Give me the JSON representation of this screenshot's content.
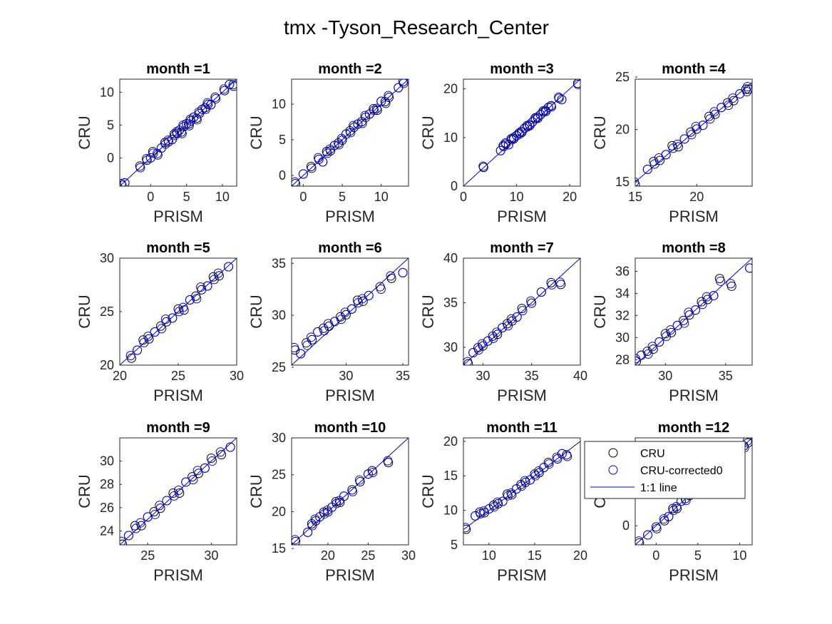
{
  "figure": {
    "title": "tmx -Tyson_Research_Center"
  },
  "legend": {
    "entries": [
      {
        "label": "CRU",
        "color": "#000000",
        "marker": "circle"
      },
      {
        "label": "CRU-corrected0",
        "color": "#0000ff",
        "marker": "circle"
      },
      {
        "label": "1:1 line",
        "color": "#0000cc",
        "marker": "line"
      }
    ],
    "placement": "over month 12 panel, top-left"
  },
  "chart_data": [
    {
      "type": "scatter",
      "title": "month =1",
      "xlabel": "PRISM",
      "ylabel": "CRU",
      "xlim": [
        -4.3,
        12
      ],
      "ylim": [
        -4.3,
        12
      ],
      "xticks": [
        0,
        5,
        10
      ],
      "yticks": [
        0,
        5,
        10
      ],
      "series": [
        {
          "name": "CRU",
          "color": "#000000"
        },
        {
          "name": "CRU-corrected0",
          "color": "#0000ff"
        }
      ],
      "points": [
        [
          -4,
          -4
        ],
        [
          -3.6,
          -3.8
        ],
        [
          -1.5,
          -1.4
        ],
        [
          -0.5,
          -0.2
        ],
        [
          0,
          0
        ],
        [
          0.3,
          0.8
        ],
        [
          1,
          0.6
        ],
        [
          1.5,
          1.5
        ],
        [
          2,
          2.2
        ],
        [
          2.5,
          2.6
        ],
        [
          3,
          2.8
        ],
        [
          3.3,
          3.5
        ],
        [
          3.7,
          3.9
        ],
        [
          4,
          4.2
        ],
        [
          4.3,
          3.8
        ],
        [
          4.6,
          4.9
        ],
        [
          5,
          5.2
        ],
        [
          5.3,
          5.0
        ],
        [
          5.6,
          5.8
        ],
        [
          6,
          6.2
        ],
        [
          6.4,
          5.9
        ],
        [
          6.8,
          6.9
        ],
        [
          7.2,
          7.4
        ],
        [
          7.6,
          7.5
        ],
        [
          8,
          8.3
        ],
        [
          8.4,
          8.1
        ],
        [
          9,
          9.1
        ],
        [
          10.3,
          10.4
        ],
        [
          11,
          11.2
        ],
        [
          11.5,
          11.0
        ]
      ],
      "line_1to1": true
    },
    {
      "type": "scatter",
      "title": "month =2",
      "xlabel": "PRISM",
      "ylabel": "CRU",
      "xlim": [
        -1.5,
        13.5
      ],
      "ylim": [
        -1.5,
        13.5
      ],
      "xticks": [
        0,
        5,
        10
      ],
      "yticks": [
        0,
        5,
        10
      ],
      "series": [
        {
          "name": "CRU",
          "color": "#000000"
        },
        {
          "name": "CRU-corrected0",
          "color": "#0000ff"
        }
      ],
      "points": [
        [
          -1,
          -1
        ],
        [
          0,
          0.2
        ],
        [
          1,
          1.1
        ],
        [
          2,
          2.4
        ],
        [
          2.5,
          1.9
        ],
        [
          3,
          3.2
        ],
        [
          3.5,
          3.6
        ],
        [
          4,
          4.2
        ],
        [
          4.5,
          4.4
        ],
        [
          5,
          5.1
        ],
        [
          5.5,
          5.8
        ],
        [
          6,
          6.1
        ],
        [
          6.5,
          6.9
        ],
        [
          7,
          7.2
        ],
        [
          7.5,
          7.4
        ],
        [
          8,
          8.3
        ],
        [
          8.5,
          8.6
        ],
        [
          9,
          9.2
        ],
        [
          9.5,
          9.3
        ],
        [
          10,
          10.4
        ],
        [
          10.5,
          10.2
        ],
        [
          11,
          11.1
        ],
        [
          12.2,
          12.3
        ],
        [
          12.8,
          13
        ]
      ],
      "line_1to1": true
    },
    {
      "type": "scatter",
      "title": "month =3",
      "xlabel": "PRISM",
      "ylabel": "CRU",
      "xlim": [
        0,
        22
      ],
      "ylim": [
        0,
        22
      ],
      "xticks": [
        0,
        10,
        20
      ],
      "yticks": [
        0,
        10,
        20
      ],
      "series": [
        {
          "name": "CRU",
          "color": "#000000"
        },
        {
          "name": "CRU-corrected0",
          "color": "#0000ff"
        }
      ],
      "points": [
        [
          3.8,
          4
        ],
        [
          7,
          7.3
        ],
        [
          7.5,
          8.2
        ],
        [
          8,
          8.8
        ],
        [
          8.5,
          8.5
        ],
        [
          9,
          9.6
        ],
        [
          9.5,
          9.9
        ],
        [
          10,
          10.4
        ],
        [
          10.5,
          10.8
        ],
        [
          11,
          11.2
        ],
        [
          11.5,
          11.9
        ],
        [
          12,
          12.3
        ],
        [
          12.5,
          12.6
        ],
        [
          13,
          13.2
        ],
        [
          13.5,
          13.9
        ],
        [
          14,
          14.1
        ],
        [
          14.5,
          14.7
        ],
        [
          15,
          15.3
        ],
        [
          15.5,
          15.5
        ],
        [
          16,
          16.2
        ],
        [
          16.5,
          16.4
        ],
        [
          18,
          18.2
        ],
        [
          18.5,
          17.8
        ],
        [
          21.5,
          21
        ]
      ],
      "line_1to1": true
    },
    {
      "type": "scatter",
      "title": "month =4",
      "xlabel": "PRISM",
      "ylabel": "CRU",
      "xlim": [
        15,
        24.5
      ],
      "ylim": [
        14.6,
        24.8
      ],
      "xticks": [
        15,
        20
      ],
      "yticks": [
        15,
        20,
        25
      ],
      "series": [
        {
          "name": "CRU",
          "color": "#000000"
        },
        {
          "name": "CRU-corrected0",
          "color": "#0000ff"
        }
      ],
      "points": [
        [
          15,
          14.9
        ],
        [
          16,
          16.2
        ],
        [
          16.5,
          16.8
        ],
        [
          17,
          17.2
        ],
        [
          17.5,
          17.6
        ],
        [
          18,
          18.3
        ],
        [
          18.5,
          18.5
        ],
        [
          19,
          19.1
        ],
        [
          19.5,
          19.6
        ],
        [
          20,
          20.2
        ],
        [
          20.5,
          20.4
        ],
        [
          21,
          21.1
        ],
        [
          21.5,
          21.6
        ],
        [
          22,
          22.1
        ],
        [
          22.5,
          22.4
        ],
        [
          23,
          22.9
        ],
        [
          23.5,
          23.4
        ],
        [
          24,
          23.7
        ],
        [
          24.2,
          24
        ]
      ],
      "line_1to1": true
    },
    {
      "type": "scatter",
      "title": "month =5",
      "xlabel": "PRISM",
      "ylabel": "CRU",
      "xlim": [
        20,
        30
      ],
      "ylim": [
        20,
        30
      ],
      "xticks": [
        20,
        25,
        30
      ],
      "yticks": [
        20,
        25,
        30
      ],
      "series": [
        {
          "name": "CRU",
          "color": "#000000"
        },
        {
          "name": "CRU-corrected0",
          "color": "#0000ff"
        }
      ],
      "points": [
        [
          21,
          20.8
        ],
        [
          21.5,
          21.4
        ],
        [
          22,
          22.2
        ],
        [
          22.5,
          22.6
        ],
        [
          23,
          23.1
        ],
        [
          23.5,
          23.5
        ],
        [
          24,
          24.2
        ],
        [
          24.5,
          24.4
        ],
        [
          25,
          25.1
        ],
        [
          25.5,
          25.3
        ],
        [
          26,
          26.1
        ],
        [
          26.5,
          26.3
        ],
        [
          27,
          27.2
        ],
        [
          27.5,
          27.4
        ],
        [
          28,
          28.1
        ],
        [
          28.5,
          28.5
        ],
        [
          29.3,
          29.2
        ]
      ],
      "line_1to1": true
    },
    {
      "type": "scatter",
      "title": "month =6",
      "xlabel": "PRISM",
      "ylabel": "CRU",
      "xlim": [
        25.2,
        35.5
      ],
      "ylim": [
        25.2,
        35.5
      ],
      "xticks": [
        30,
        35
      ],
      "yticks": [
        25,
        30,
        35
      ],
      "series": [
        {
          "name": "CRU",
          "color": "#000000"
        },
        {
          "name": "CRU-corrected0",
          "color": "#0000ff"
        }
      ],
      "points": [
        [
          25.5,
          26.8
        ],
        [
          26,
          26.3
        ],
        [
          26.5,
          27.2
        ],
        [
          27,
          27.8
        ],
        [
          27.5,
          28.4
        ],
        [
          28,
          28.6
        ],
        [
          28.5,
          29.1
        ],
        [
          29,
          29.4
        ],
        [
          29.5,
          29.7
        ],
        [
          30,
          30.2
        ],
        [
          30.5,
          30.6
        ],
        [
          31,
          31.3
        ],
        [
          31.5,
          31.5
        ],
        [
          32,
          31.9
        ],
        [
          33,
          32.6
        ],
        [
          34,
          33.7
        ],
        [
          35,
          34.1
        ]
      ],
      "line_1to1": true
    },
    {
      "type": "scatter",
      "title": "month =7",
      "xlabel": "PRISM",
      "ylabel": "CRU",
      "xlim": [
        28,
        40
      ],
      "ylim": [
        28,
        40
      ],
      "xticks": [
        30,
        35,
        40
      ],
      "yticks": [
        30,
        35,
        40
      ],
      "series": [
        {
          "name": "CRU",
          "color": "#000000"
        },
        {
          "name": "CRU-corrected0",
          "color": "#0000ff"
        }
      ],
      "points": [
        [
          28.5,
          28.3
        ],
        [
          29,
          29.4
        ],
        [
          29.5,
          29.8
        ],
        [
          30,
          30.3
        ],
        [
          30.5,
          30.7
        ],
        [
          31,
          31.1
        ],
        [
          31.5,
          31.6
        ],
        [
          32,
          32.2
        ],
        [
          32.5,
          32.5
        ],
        [
          33,
          33.1
        ],
        [
          33.5,
          33.4
        ],
        [
          34,
          34.2
        ],
        [
          35,
          35.1
        ],
        [
          36,
          36.2
        ],
        [
          37,
          37.1
        ],
        [
          38,
          37.2
        ]
      ],
      "line_1to1": true
    },
    {
      "type": "scatter",
      "title": "month =8",
      "xlabel": "PRISM",
      "ylabel": "CRU",
      "xlim": [
        27.5,
        37.2
      ],
      "ylim": [
        27.5,
        37.2
      ],
      "xticks": [
        30,
        35
      ],
      "yticks": [
        28,
        30,
        32,
        34,
        36
      ],
      "series": [
        {
          "name": "CRU",
          "color": "#000000"
        },
        {
          "name": "CRU-corrected0",
          "color": "#0000ff"
        }
      ],
      "points": [
        [
          27.6,
          28
        ],
        [
          28,
          28.4
        ],
        [
          28.5,
          28.6
        ],
        [
          29,
          29.1
        ],
        [
          29.5,
          29.6
        ],
        [
          30,
          30.2
        ],
        [
          30.5,
          30.6
        ],
        [
          31,
          31.1
        ],
        [
          31.5,
          31.4
        ],
        [
          32,
          32.2
        ],
        [
          32.5,
          32.5
        ],
        [
          33,
          33.1
        ],
        [
          33.5,
          33.6
        ],
        [
          34,
          33.8
        ],
        [
          34.5,
          35.2
        ],
        [
          35.5,
          34.8
        ],
        [
          37,
          36.3
        ]
      ],
      "line_1to1": true
    },
    {
      "type": "scatter",
      "title": "month =9",
      "xlabel": "PRISM",
      "ylabel": "CRU",
      "xlim": [
        22.8,
        32
      ],
      "ylim": [
        22.8,
        32
      ],
      "xticks": [
        25,
        30
      ],
      "yticks": [
        24,
        26,
        28,
        30
      ],
      "series": [
        {
          "name": "CRU",
          "color": "#000000"
        },
        {
          "name": "CRU-corrected0",
          "color": "#0000ff"
        }
      ],
      "points": [
        [
          23,
          23
        ],
        [
          23.5,
          23.6
        ],
        [
          24,
          24.3
        ],
        [
          24.5,
          24.6
        ],
        [
          25,
          25.2
        ],
        [
          25.5,
          25.5
        ],
        [
          26,
          26.1
        ],
        [
          26.5,
          26.6
        ],
        [
          27,
          27.1
        ],
        [
          27.5,
          27.4
        ],
        [
          28,
          28.2
        ],
        [
          28.5,
          28.5
        ],
        [
          29,
          29.1
        ],
        [
          29.5,
          29.4
        ],
        [
          30,
          30.1
        ],
        [
          30.8,
          30.7
        ],
        [
          31.5,
          31.2
        ]
      ],
      "line_1to1": true
    },
    {
      "type": "scatter",
      "title": "month =10",
      "xlabel": "PRISM",
      "ylabel": "CRU",
      "xlim": [
        15.5,
        30
      ],
      "ylim": [
        15.5,
        30
      ],
      "xticks": [
        20,
        25,
        30
      ],
      "yticks": [
        15,
        20,
        25,
        30
      ],
      "series": [
        {
          "name": "CRU",
          "color": "#000000"
        },
        {
          "name": "CRU-corrected0",
          "color": "#0000ff"
        }
      ],
      "points": [
        [
          16,
          16.1
        ],
        [
          17.5,
          17.2
        ],
        [
          18,
          18.2
        ],
        [
          18.5,
          18.9
        ],
        [
          19,
          19.3
        ],
        [
          19.5,
          19.8
        ],
        [
          20,
          20.1
        ],
        [
          20.5,
          20.6
        ],
        [
          21,
          21.2
        ],
        [
          21.5,
          21.4
        ],
        [
          22,
          22.1
        ],
        [
          23,
          22.8
        ],
        [
          24,
          24.2
        ],
        [
          25,
          25.1
        ],
        [
          25.5,
          25.4
        ],
        [
          27.5,
          26.8
        ]
      ],
      "line_1to1": true
    },
    {
      "type": "scatter",
      "title": "month =11",
      "xlabel": "PRISM",
      "ylabel": "CRU",
      "xlim": [
        7.2,
        20
      ],
      "ylim": [
        5,
        20.5
      ],
      "xticks": [
        10,
        15,
        20
      ],
      "yticks": [
        5,
        10,
        15,
        20
      ],
      "series": [
        {
          "name": "CRU",
          "color": "#000000"
        },
        {
          "name": "CRU-corrected0",
          "color": "#0000ff"
        }
      ],
      "points": [
        [
          7.5,
          7.4
        ],
        [
          8.5,
          9.2
        ],
        [
          9,
          9.6
        ],
        [
          9.5,
          9.8
        ],
        [
          10,
          10.2
        ],
        [
          10.5,
          10.6
        ],
        [
          11,
          11.1
        ],
        [
          11.5,
          11.3
        ],
        [
          12,
          12.2
        ],
        [
          12.5,
          12.4
        ],
        [
          13,
          13.1
        ],
        [
          13.5,
          13.6
        ],
        [
          14,
          14.2
        ],
        [
          14.5,
          14.4
        ],
        [
          15,
          15.1
        ],
        [
          15.5,
          15.6
        ],
        [
          16,
          16.2
        ],
        [
          16.5,
          16.8
        ],
        [
          17.5,
          17.6
        ],
        [
          18,
          18.2
        ],
        [
          18.5,
          17.9
        ]
      ],
      "line_1to1": true
    },
    {
      "type": "scatter",
      "title": "month =12",
      "xlabel": "PRISM",
      "ylabel": "CRU",
      "xlim": [
        -2.5,
        11.5
      ],
      "ylim": [
        -2.5,
        11.5
      ],
      "xticks": [
        0,
        5,
        10
      ],
      "yticks": [
        0
      ],
      "series": [
        {
          "name": "CRU",
          "color": "#000000"
        },
        {
          "name": "CRU-corrected0",
          "color": "#0000ff"
        }
      ],
      "points": [
        [
          -2,
          -2.1
        ],
        [
          -1,
          -1.2
        ],
        [
          0,
          -0.3
        ],
        [
          1,
          0.8
        ],
        [
          1.5,
          1.2
        ],
        [
          2,
          2.1
        ],
        [
          2.5,
          2.4
        ],
        [
          3,
          3.2
        ],
        [
          3.5,
          3.4
        ],
        [
          4,
          4.1
        ],
        [
          10,
          10
        ],
        [
          10.5,
          10.3
        ],
        [
          11,
          11
        ]
      ],
      "line_1to1": true
    }
  ]
}
